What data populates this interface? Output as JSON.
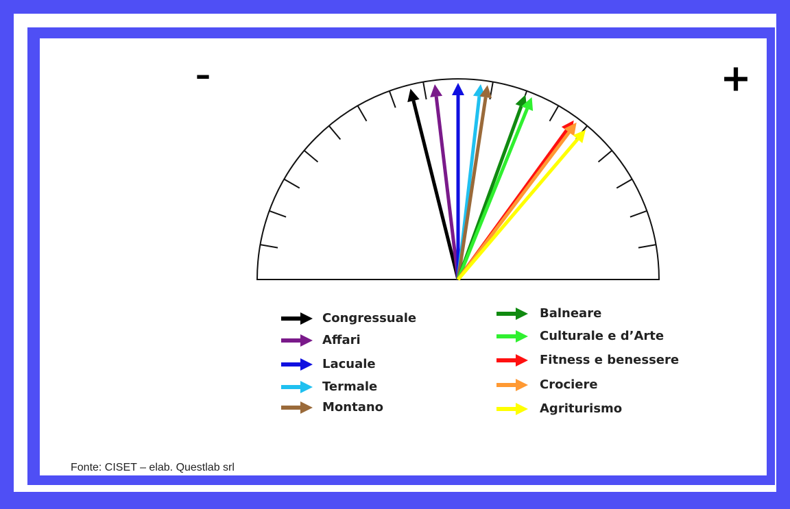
{
  "minus_label": "–",
  "plus_label": "+",
  "legend_left": [
    "Congressuale",
    "Affari",
    "Lacuale",
    "Termale",
    "Montano"
  ],
  "legend_right": [
    "Balneare",
    "Culturale e d’Arte",
    "Fitness e benessere",
    "Crociere",
    "Agriturismo"
  ],
  "source": "Fonte: CISET – elab. Questlab srl"
}
